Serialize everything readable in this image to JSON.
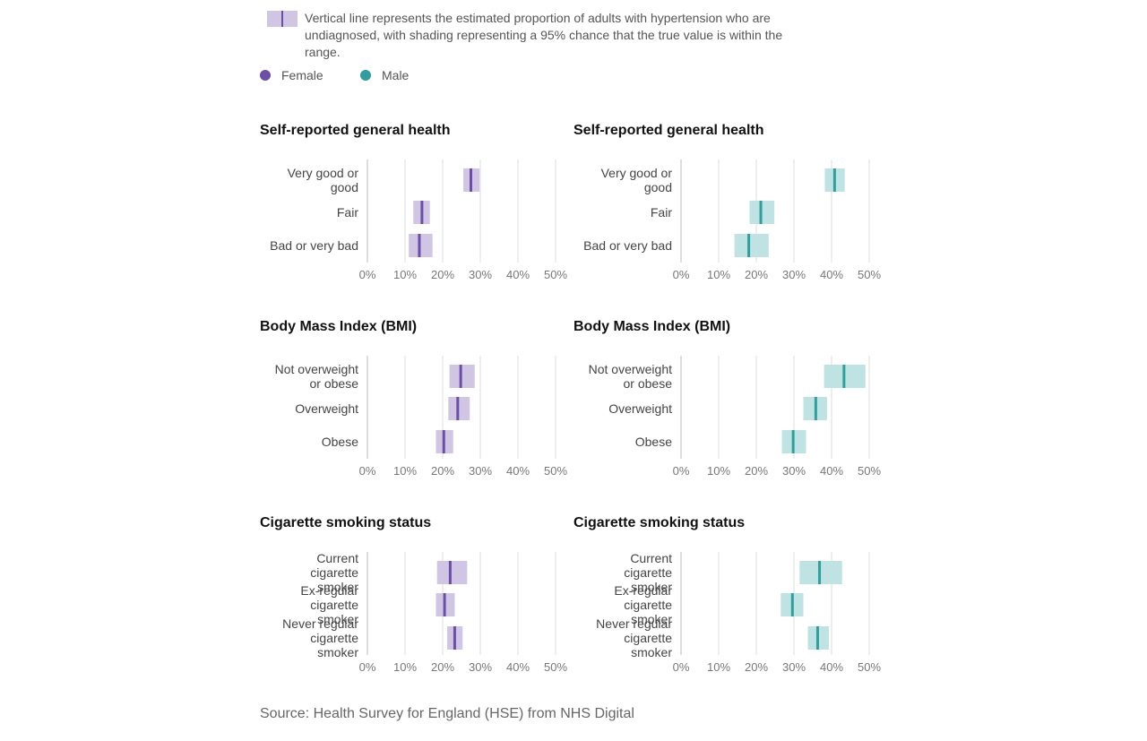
{
  "legend": {
    "description": "Vertical line represents the estimated proportion of adults with hypertension who are undiagnosed, with shading representing a 95% chance that the true value is within the range.",
    "female_label": "Female",
    "male_label": "Male"
  },
  "colors": {
    "female_line": "#6b4ea8",
    "female_band": "#d0c6e4",
    "male_line": "#2e9e9e",
    "male_band": "#bfe3e3",
    "grid": "#dddddd",
    "axis": "#bbbbbb",
    "label_text": "#444444",
    "tick_text": "#777777"
  },
  "source": "Source: Health Survey for England (HSE) from NHS Digital",
  "chart_data": [
    {
      "type": "range-dot",
      "title": "Self-reported general health",
      "sex": "Female",
      "xlim": [
        0,
        50
      ],
      "xticks": [
        "0%",
        "10%",
        "20%",
        "30%",
        "40%",
        "50%"
      ],
      "categories": [
        [
          "Very good or",
          "good"
        ],
        [
          "Fair"
        ],
        [
          "Bad or very bad"
        ]
      ],
      "estimate": [
        27.5,
        14.5,
        13.8
      ],
      "lower": [
        25.5,
        12.2,
        11.0
      ],
      "upper": [
        29.8,
        16.6,
        17.3
      ]
    },
    {
      "type": "range-dot",
      "title": "Self-reported general health",
      "sex": "Male",
      "xlim": [
        0,
        50
      ],
      "xticks": [
        "0%",
        "10%",
        "20%",
        "30%",
        "40%",
        "50%"
      ],
      "categories": [
        [
          "Very good or",
          "good"
        ],
        [
          "Fair"
        ],
        [
          "Bad or very bad"
        ]
      ],
      "estimate": [
        40.8,
        21.2,
        18.0
      ],
      "lower": [
        38.2,
        18.2,
        14.2
      ],
      "upper": [
        43.5,
        24.8,
        23.3
      ]
    },
    {
      "type": "range-dot",
      "title": "Body Mass Index (BMI)",
      "sex": "Female",
      "xlim": [
        0,
        50
      ],
      "xticks": [
        "0%",
        "10%",
        "20%",
        "30%",
        "40%",
        "50%"
      ],
      "categories": [
        [
          "Not overweight",
          "or obese"
        ],
        [
          "Overweight"
        ],
        [
          "Obese"
        ]
      ],
      "estimate": [
        24.8,
        24.0,
        20.3
      ],
      "lower": [
        21.8,
        21.5,
        18.2
      ],
      "upper": [
        28.5,
        27.2,
        22.8
      ]
    },
    {
      "type": "range-dot",
      "title": "Body Mass Index (BMI)",
      "sex": "Male",
      "xlim": [
        0,
        50
      ],
      "xticks": [
        "0%",
        "10%",
        "20%",
        "30%",
        "40%",
        "50%"
      ],
      "categories": [
        [
          "Not overweight",
          "or obese"
        ],
        [
          "Overweight"
        ],
        [
          "Obese"
        ]
      ],
      "estimate": [
        43.3,
        35.8,
        29.8
      ],
      "lower": [
        38.0,
        32.5,
        26.8
      ],
      "upper": [
        49.0,
        38.8,
        33.2
      ]
    },
    {
      "type": "range-dot",
      "title": "Cigarette smoking status",
      "sex": "Female",
      "xlim": [
        0,
        50
      ],
      "xticks": [
        "0%",
        "10%",
        "20%",
        "30%",
        "40%",
        "50%"
      ],
      "categories": [
        [
          "Current",
          "cigarette",
          "smoker"
        ],
        [
          "Ex-regular",
          "cigarette",
          "smoker"
        ],
        [
          "Never regular",
          "cigarette",
          "smoker"
        ]
      ],
      "estimate": [
        22.0,
        20.5,
        23.2
      ],
      "lower": [
        18.5,
        18.2,
        21.2
      ],
      "upper": [
        26.5,
        23.2,
        25.3
      ]
    },
    {
      "type": "range-dot",
      "title": "Cigarette smoking status",
      "sex": "Male",
      "xlim": [
        0,
        50
      ],
      "xticks": [
        "0%",
        "10%",
        "20%",
        "30%",
        "40%",
        "50%"
      ],
      "categories": [
        [
          "Current",
          "cigarette",
          "smoker"
        ],
        [
          "Ex-regular",
          "cigarette",
          "smoker"
        ],
        [
          "Never regular",
          "cigarette",
          "smoker"
        ]
      ],
      "estimate": [
        36.8,
        29.6,
        36.3
      ],
      "lower": [
        31.5,
        26.5,
        33.7
      ],
      "upper": [
        42.8,
        32.5,
        39.3
      ]
    }
  ]
}
